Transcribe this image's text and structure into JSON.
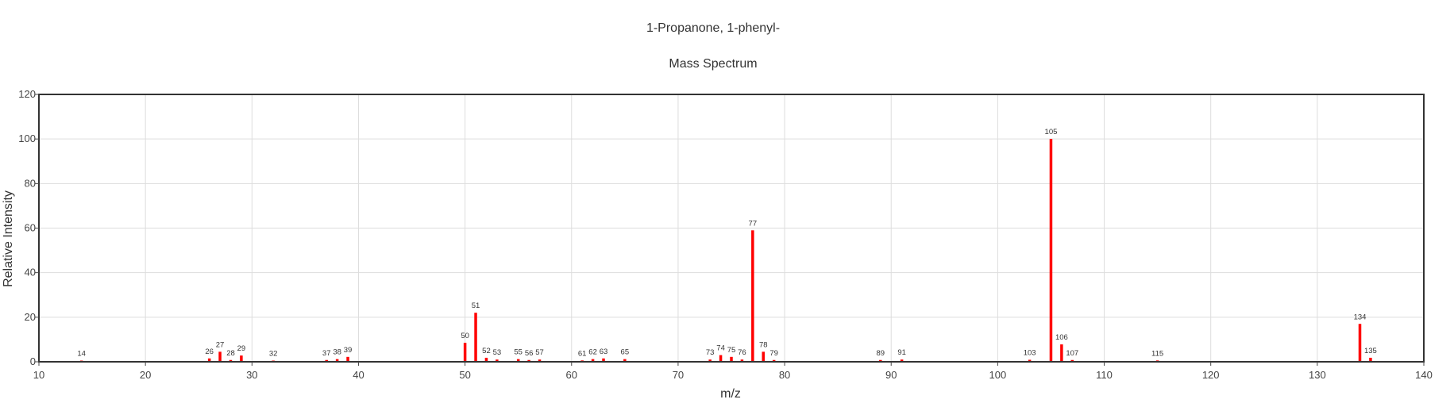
{
  "chart_data": {
    "type": "bar",
    "title": "1-Propanone, 1-phenyl-",
    "subtitle": "Mass Spectrum",
    "xlabel": "m/z",
    "ylabel": "Relative Intensity",
    "xlim": [
      10,
      140
    ],
    "ylim": [
      0,
      120
    ],
    "xticks": [
      10,
      20,
      30,
      40,
      50,
      60,
      70,
      80,
      90,
      100,
      110,
      120,
      130,
      140
    ],
    "yticks": [
      0,
      20,
      40,
      60,
      80,
      100,
      120
    ],
    "grid": true,
    "bar_color": "#ff0000",
    "peaks": [
      {
        "mz": 14,
        "intensity": 0.5
      },
      {
        "mz": 26,
        "intensity": 1.5
      },
      {
        "mz": 27,
        "intensity": 4.5
      },
      {
        "mz": 28,
        "intensity": 0.8
      },
      {
        "mz": 29,
        "intensity": 2.8
      },
      {
        "mz": 32,
        "intensity": 0.4
      },
      {
        "mz": 37,
        "intensity": 0.8
      },
      {
        "mz": 38,
        "intensity": 1.2
      },
      {
        "mz": 39,
        "intensity": 2.2
      },
      {
        "mz": 50,
        "intensity": 8.5
      },
      {
        "mz": 51,
        "intensity": 22
      },
      {
        "mz": 52,
        "intensity": 1.8
      },
      {
        "mz": 53,
        "intensity": 1.0
      },
      {
        "mz": 55,
        "intensity": 1.2
      },
      {
        "mz": 56,
        "intensity": 0.8
      },
      {
        "mz": 57,
        "intensity": 1.0
      },
      {
        "mz": 61,
        "intensity": 0.6
      },
      {
        "mz": 62,
        "intensity": 1.2
      },
      {
        "mz": 63,
        "intensity": 1.5
      },
      {
        "mz": 65,
        "intensity": 1.2
      },
      {
        "mz": 73,
        "intensity": 1.0
      },
      {
        "mz": 74,
        "intensity": 3.0
      },
      {
        "mz": 75,
        "intensity": 2.2
      },
      {
        "mz": 76,
        "intensity": 1.0
      },
      {
        "mz": 77,
        "intensity": 59
      },
      {
        "mz": 78,
        "intensity": 4.5
      },
      {
        "mz": 79,
        "intensity": 0.8
      },
      {
        "mz": 89,
        "intensity": 0.8
      },
      {
        "mz": 91,
        "intensity": 1.0
      },
      {
        "mz": 103,
        "intensity": 0.9
      },
      {
        "mz": 105,
        "intensity": 100
      },
      {
        "mz": 106,
        "intensity": 7.8
      },
      {
        "mz": 107,
        "intensity": 0.8
      },
      {
        "mz": 115,
        "intensity": 0.6
      },
      {
        "mz": 134,
        "intensity": 17
      },
      {
        "mz": 135,
        "intensity": 1.8
      }
    ]
  }
}
